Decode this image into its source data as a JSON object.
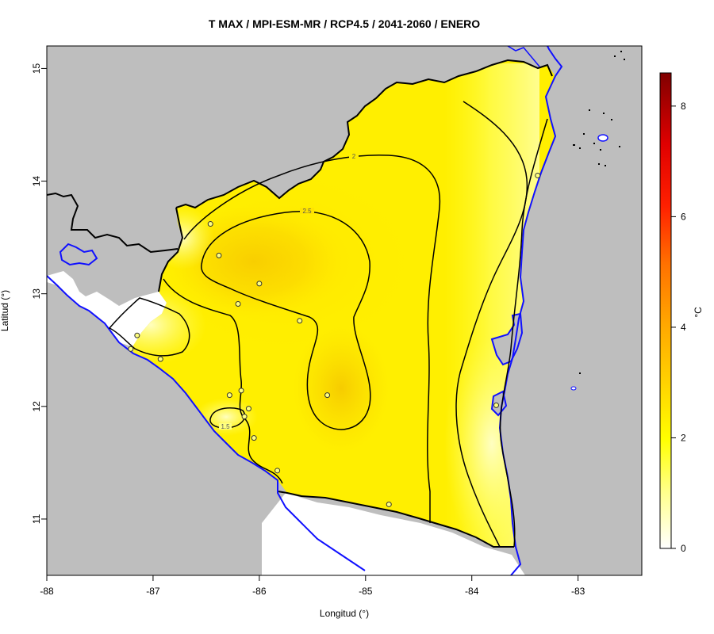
{
  "title": "T MAX / MPI-ESM-MR / RCP4.5 / 2041-2060 / ENERO",
  "xlabel": "Longitud (°)",
  "ylabel": "Latitud (°)",
  "colorbar": {
    "unit": "°C",
    "ticks": [
      "0",
      "2",
      "4",
      "6",
      "8"
    ],
    "tick_values": [
      0,
      2,
      4,
      6,
      8
    ],
    "range": [
      0,
      8.6
    ],
    "colors": [
      "#ffffff",
      "#ffff66",
      "#ffff00",
      "#ffd000",
      "#ff9900",
      "#ff4400",
      "#ff0000",
      "#8b0000"
    ]
  },
  "chart_data": {
    "type": "heatmap",
    "title": "T MAX / MPI-ESM-MR / RCP4.5 / 2041-2060 / ENERO",
    "xlabel": "Longitud (°)",
    "ylabel": "Latitud (°)",
    "xlim": [
      -88,
      -82.4
    ],
    "ylim": [
      10.5,
      15.2
    ],
    "x_ticks": [
      "-88",
      "-87",
      "-86",
      "-85",
      "-84",
      "-83"
    ],
    "x_tick_values": [
      -88,
      -87,
      -86,
      -85,
      -84,
      -83
    ],
    "y_ticks": [
      "11",
      "12",
      "13",
      "14",
      "15"
    ],
    "y_tick_values": [
      11,
      12,
      13,
      14,
      15
    ],
    "contour_labels": [
      "2",
      "2.5",
      "1.5"
    ],
    "stations": [
      {
        "lon": -86.46,
        "lat": 13.62
      },
      {
        "lon": -86.38,
        "lat": 13.34
      },
      {
        "lon": -86.0,
        "lat": 13.09
      },
      {
        "lon": -86.2,
        "lat": 12.91
      },
      {
        "lon": -85.62,
        "lat": 12.76
      },
      {
        "lon": -87.15,
        "lat": 12.63
      },
      {
        "lon": -87.21,
        "lat": 12.51
      },
      {
        "lon": -86.93,
        "lat": 12.42
      },
      {
        "lon": -86.28,
        "lat": 12.1
      },
      {
        "lon": -86.17,
        "lat": 12.14
      },
      {
        "lon": -86.1,
        "lat": 11.98
      },
      {
        "lon": -86.14,
        "lat": 11.91
      },
      {
        "lon": -86.05,
        "lat": 11.72
      },
      {
        "lon": -85.83,
        "lat": 11.43
      },
      {
        "lon": -85.36,
        "lat": 12.1
      },
      {
        "lon": -84.78,
        "lat": 11.13
      },
      {
        "lon": -83.77,
        "lat": 12.01
      },
      {
        "lon": -83.38,
        "lat": 14.05
      }
    ]
  }
}
